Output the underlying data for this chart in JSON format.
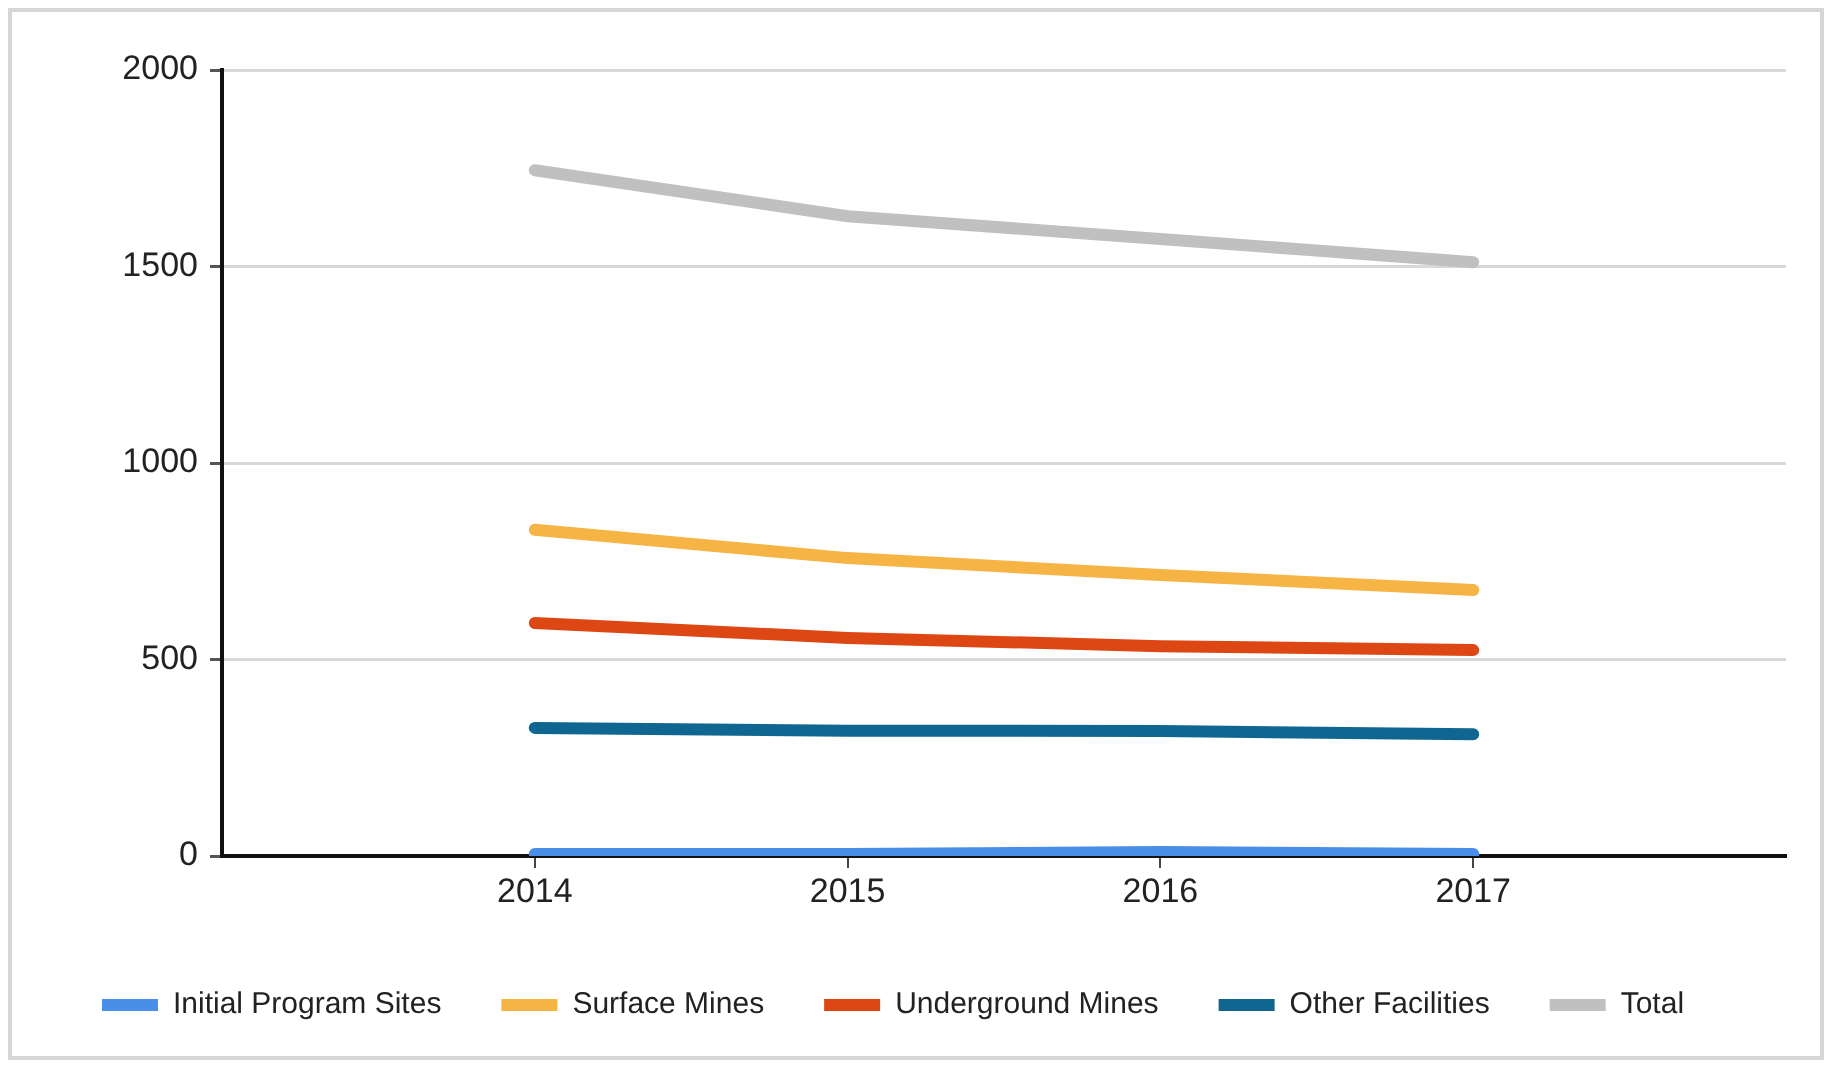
{
  "chart_data": {
    "type": "line",
    "categories": [
      "2014",
      "2015",
      "2016",
      "2017"
    ],
    "series": [
      {
        "name": "Initial Program Sites",
        "color": "#4a8fe7",
        "values": [
          5,
          5,
          10,
          5
        ]
      },
      {
        "name": "Surface Mines",
        "color": "#f6b445",
        "values": [
          830,
          758,
          715,
          677
        ]
      },
      {
        "name": "Underground Mines",
        "color": "#dc4714",
        "values": [
          593,
          555,
          534,
          524
        ]
      },
      {
        "name": "Other Facilities",
        "color": "#0f6791",
        "values": [
          326,
          319,
          318,
          310
        ]
      },
      {
        "name": "Total",
        "color": "#c0c0c0",
        "values": [
          1745,
          1628,
          1570,
          1511
        ]
      }
    ],
    "ylim": [
      0,
      2000
    ],
    "yticks": [
      0,
      500,
      1000,
      1500,
      2000
    ],
    "grid": "y",
    "legend": "bottom",
    "marker": "none",
    "line_style": "solid"
  }
}
